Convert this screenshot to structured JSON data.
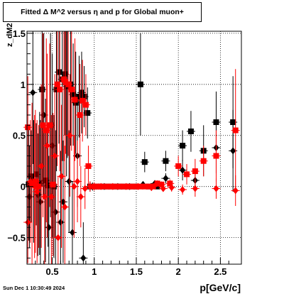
{
  "title": "Fitted Δ M^2 versus η and p for Global muon+",
  "footer_date": "Sun Dec  1 10:30:49 2024",
  "colors": {
    "black_series": "#000000",
    "red_series": "#ff0000",
    "grid": "#000000"
  },
  "chart_data": {
    "type": "scatter",
    "title": "Fitted Δ M^2 versus η and p for Global muon+",
    "xlabel": "p[GeV/c]",
    "ylabel": "z_dM2",
    "xlim": [
      0.2,
      2.75
    ],
    "ylim": [
      -0.76,
      1.52
    ],
    "xticks": [
      0.5,
      1,
      1.5,
      2,
      2.5
    ],
    "xtick_labels": [
      "0.5",
      "1",
      "1.5",
      "2",
      "2.5"
    ],
    "yticks": [
      -0.5,
      0,
      0.5,
      1,
      1.5
    ],
    "ytick_labels": [
      "−0.5",
      "0",
      "0.5",
      "1",
      "1.5"
    ],
    "grid": true,
    "series": [
      {
        "marker": "square",
        "color": "#000000",
        "points": [
          {
            "x": 0.22,
            "y": 0.02,
            "err": 0.55
          },
          {
            "x": 0.25,
            "y": 0.1,
            "err": 0.45
          },
          {
            "x": 0.28,
            "y": 0.05,
            "err": 0.6
          },
          {
            "x": 0.31,
            "y": 0.12,
            "err": 0.5
          },
          {
            "x": 0.35,
            "y": 0.03,
            "err": 0.7
          },
          {
            "x": 0.38,
            "y": 0.95,
            "err": 0.9
          },
          {
            "x": 0.42,
            "y": 0.06,
            "err": 0.8
          },
          {
            "x": 0.45,
            "y": 0.01,
            "err": 0.6
          },
          {
            "x": 0.48,
            "y": 0.6,
            "err": 0.9
          },
          {
            "x": 0.52,
            "y": 0.0,
            "err": 0.7
          },
          {
            "x": 0.55,
            "y": 0.95,
            "err": 0.8
          },
          {
            "x": 0.58,
            "y": 1.12,
            "err": 0.7
          },
          {
            "x": 0.62,
            "y": 1.05,
            "err": 0.8
          },
          {
            "x": 0.65,
            "y": 1.1,
            "err": 0.6
          },
          {
            "x": 0.68,
            "y": 0.98,
            "err": 0.7
          },
          {
            "x": 0.72,
            "y": 1.0,
            "err": 0.6
          },
          {
            "x": 0.75,
            "y": 0.9,
            "err": 0.5
          },
          {
            "x": 0.78,
            "y": 0.82,
            "err": 0.5
          },
          {
            "x": 0.82,
            "y": 0.88,
            "err": 0.4
          },
          {
            "x": 0.85,
            "y": 0.92,
            "err": 0.4
          },
          {
            "x": 0.88,
            "y": 0.88,
            "err": 0.3
          },
          {
            "x": 0.92,
            "y": 0.72,
            "err": 0.25
          },
          {
            "x": 0.95,
            "y": 0.0,
            "err": 0.05
          },
          {
            "x": 1.0,
            "y": 0.0,
            "err": 0.03
          },
          {
            "x": 1.05,
            "y": 0.0,
            "err": 0.02
          },
          {
            "x": 1.1,
            "y": 0.0,
            "err": 0.02
          },
          {
            "x": 1.15,
            "y": 0.0,
            "err": 0.02
          },
          {
            "x": 1.2,
            "y": 0.0,
            "err": 0.02
          },
          {
            "x": 1.25,
            "y": 0.0,
            "err": 0.02
          },
          {
            "x": 1.3,
            "y": 0.0,
            "err": 0.02
          },
          {
            "x": 1.35,
            "y": 0.0,
            "err": 0.02
          },
          {
            "x": 1.4,
            "y": 0.0,
            "err": 0.02
          },
          {
            "x": 1.45,
            "y": 0.0,
            "err": 0.02
          },
          {
            "x": 1.5,
            "y": 0.0,
            "err": 0.02
          },
          {
            "x": 1.55,
            "y": 1.0,
            "err": 0.5
          },
          {
            "x": 1.6,
            "y": 0.24,
            "err": 0.1
          },
          {
            "x": 1.65,
            "y": 0.0,
            "err": 0.02
          },
          {
            "x": 1.75,
            "y": 0.0,
            "err": 0.02
          },
          {
            "x": 1.85,
            "y": 0.25,
            "err": 0.1
          },
          {
            "x": 2.05,
            "y": 0.4,
            "err": 0.15
          },
          {
            "x": 2.15,
            "y": 0.54,
            "err": 0.2
          },
          {
            "x": 2.3,
            "y": 0.35,
            "err": 0.25
          },
          {
            "x": 2.45,
            "y": 0.63,
            "err": 0.3
          },
          {
            "x": 2.65,
            "y": 0.63,
            "err": 0.45
          }
        ]
      },
      {
        "marker": "diamond",
        "color": "#000000",
        "points": [
          {
            "x": 0.23,
            "y": -0.1,
            "err": 0.5
          },
          {
            "x": 0.27,
            "y": 0.92,
            "err": 0.7
          },
          {
            "x": 0.33,
            "y": -0.08,
            "err": 0.6
          },
          {
            "x": 0.36,
            "y": -0.15,
            "err": 0.8
          },
          {
            "x": 0.4,
            "y": 0.7,
            "err": 0.8
          },
          {
            "x": 0.46,
            "y": -0.4,
            "err": 0.7
          },
          {
            "x": 0.5,
            "y": 0.4,
            "err": 0.9
          },
          {
            "x": 0.54,
            "y": -0.25,
            "err": 0.8
          },
          {
            "x": 0.6,
            "y": -0.35,
            "err": 0.7
          },
          {
            "x": 0.63,
            "y": -0.15,
            "err": 0.6
          },
          {
            "x": 0.67,
            "y": 1.0,
            "err": 0.9
          },
          {
            "x": 0.7,
            "y": 0.05,
            "err": 0.5
          },
          {
            "x": 0.74,
            "y": -0.45,
            "err": 0.5
          },
          {
            "x": 0.8,
            "y": 0.3,
            "err": 0.5
          },
          {
            "x": 0.87,
            "y": -0.7,
            "err": 0.35
          },
          {
            "x": 0.98,
            "y": 0.0,
            "err": 0.04
          },
          {
            "x": 1.12,
            "y": 0.0,
            "err": 0.03
          },
          {
            "x": 1.28,
            "y": 0.0,
            "err": 0.02
          },
          {
            "x": 1.42,
            "y": 0.0,
            "err": 0.02
          },
          {
            "x": 1.58,
            "y": 0.02,
            "err": 0.02
          },
          {
            "x": 1.72,
            "y": 0.03,
            "err": 0.03
          },
          {
            "x": 1.85,
            "y": 0.08,
            "err": 0.05
          },
          {
            "x": 2.05,
            "y": 0.16,
            "err": 0.1
          },
          {
            "x": 2.2,
            "y": 0.06,
            "err": 0.1
          },
          {
            "x": 2.45,
            "y": 0.38,
            "err": 0.25
          },
          {
            "x": 2.65,
            "y": 0.35,
            "err": 0.4
          }
        ]
      },
      {
        "marker": "square",
        "color": "#ff0000",
        "points": [
          {
            "x": 0.21,
            "y": 0.58,
            "err": 0.5
          },
          {
            "x": 0.26,
            "y": 0.02,
            "err": 0.8
          },
          {
            "x": 0.3,
            "y": 0.05,
            "err": 0.7
          },
          {
            "x": 0.34,
            "y": 0.0,
            "err": 0.6
          },
          {
            "x": 0.39,
            "y": 0.6,
            "err": 0.9
          },
          {
            "x": 0.43,
            "y": 0.55,
            "err": 0.9
          },
          {
            "x": 0.47,
            "y": 0.6,
            "err": 0.8
          },
          {
            "x": 0.51,
            "y": 0.02,
            "err": 0.7
          },
          {
            "x": 0.56,
            "y": 1.0,
            "err": 0.8
          },
          {
            "x": 0.59,
            "y": 0.95,
            "err": 0.8
          },
          {
            "x": 0.64,
            "y": 1.05,
            "err": 0.8
          },
          {
            "x": 0.66,
            "y": 1.02,
            "err": 0.7
          },
          {
            "x": 0.69,
            "y": 1.0,
            "err": 0.7
          },
          {
            "x": 0.73,
            "y": 0.95,
            "err": 0.6
          },
          {
            "x": 0.77,
            "y": 0.85,
            "err": 0.6
          },
          {
            "x": 0.83,
            "y": 0.7,
            "err": 0.5
          },
          {
            "x": 0.86,
            "y": 0.84,
            "err": 0.4
          },
          {
            "x": 0.9,
            "y": 0.8,
            "err": 0.3
          },
          {
            "x": 0.93,
            "y": 0.2,
            "err": 0.2
          },
          {
            "x": 1.0,
            "y": 0.0,
            "err": 0.04
          },
          {
            "x": 1.05,
            "y": 0.0,
            "err": 0.03
          },
          {
            "x": 1.1,
            "y": 0.0,
            "err": 0.02
          },
          {
            "x": 1.15,
            "y": 0.0,
            "err": 0.02
          },
          {
            "x": 1.2,
            "y": 0.0,
            "err": 0.02
          },
          {
            "x": 1.25,
            "y": 0.0,
            "err": 0.02
          },
          {
            "x": 1.3,
            "y": 0.0,
            "err": 0.02
          },
          {
            "x": 1.35,
            "y": 0.0,
            "err": 0.02
          },
          {
            "x": 1.4,
            "y": 0.0,
            "err": 0.02
          },
          {
            "x": 1.45,
            "y": 0.0,
            "err": 0.02
          },
          {
            "x": 1.5,
            "y": 0.0,
            "err": 0.02
          },
          {
            "x": 1.55,
            "y": 0.0,
            "err": 0.02
          },
          {
            "x": 1.6,
            "y": 0.0,
            "err": 0.02
          },
          {
            "x": 1.65,
            "y": 0.0,
            "err": 0.02
          },
          {
            "x": 1.7,
            "y": 0.0,
            "err": 0.02
          },
          {
            "x": 1.75,
            "y": 0.03,
            "err": 0.03
          },
          {
            "x": 1.8,
            "y": 0.02,
            "err": 0.03
          },
          {
            "x": 1.9,
            "y": 0.03,
            "err": 0.04
          },
          {
            "x": 2.0,
            "y": 0.2,
            "err": 0.1
          },
          {
            "x": 2.1,
            "y": 0.12,
            "err": 0.1
          },
          {
            "x": 2.2,
            "y": 0.15,
            "err": 0.12
          },
          {
            "x": 2.3,
            "y": 0.25,
            "err": 0.15
          },
          {
            "x": 2.45,
            "y": 0.3,
            "err": 0.25
          },
          {
            "x": 2.68,
            "y": 0.55,
            "err": 0.6
          }
        ]
      },
      {
        "marker": "diamond",
        "color": "#ff0000",
        "points": [
          {
            "x": 0.21,
            "y": -0.35,
            "err": 0.4
          },
          {
            "x": 0.24,
            "y": 0.05,
            "err": 0.6
          },
          {
            "x": 0.29,
            "y": 0.0,
            "err": 0.7
          },
          {
            "x": 0.32,
            "y": -0.05,
            "err": 0.7
          },
          {
            "x": 0.37,
            "y": 0.2,
            "err": 0.8
          },
          {
            "x": 0.41,
            "y": -0.1,
            "err": 0.7
          },
          {
            "x": 0.44,
            "y": 0.4,
            "err": 0.9
          },
          {
            "x": 0.49,
            "y": -0.1,
            "err": 0.8
          },
          {
            "x": 0.53,
            "y": 0.3,
            "err": 0.8
          },
          {
            "x": 0.57,
            "y": -0.5,
            "err": 0.6
          },
          {
            "x": 0.61,
            "y": 0.1,
            "err": 0.7
          },
          {
            "x": 0.65,
            "y": -0.2,
            "err": 0.6
          },
          {
            "x": 0.71,
            "y": 0.5,
            "err": 0.6
          },
          {
            "x": 0.76,
            "y": 0.0,
            "err": 0.5
          },
          {
            "x": 0.8,
            "y": 0.05,
            "err": 0.4
          },
          {
            "x": 0.84,
            "y": -0.1,
            "err": 0.3
          },
          {
            "x": 0.89,
            "y": -0.02,
            "err": 0.2
          },
          {
            "x": 0.95,
            "y": 0.0,
            "err": 0.05
          },
          {
            "x": 1.08,
            "y": 0.0,
            "err": 0.03
          },
          {
            "x": 1.22,
            "y": 0.0,
            "err": 0.02
          },
          {
            "x": 1.38,
            "y": 0.0,
            "err": 0.02
          },
          {
            "x": 1.52,
            "y": 0.0,
            "err": 0.02
          },
          {
            "x": 1.68,
            "y": -0.01,
            "err": 0.03
          },
          {
            "x": 1.82,
            "y": -0.02,
            "err": 0.03
          },
          {
            "x": 1.92,
            "y": -0.01,
            "err": 0.04
          },
          {
            "x": 2.05,
            "y": -0.03,
            "err": 0.05
          },
          {
            "x": 2.2,
            "y": -0.02,
            "err": 0.08
          },
          {
            "x": 2.45,
            "y": -0.02,
            "err": 0.1
          },
          {
            "x": 2.68,
            "y": -0.04,
            "err": 0.15
          }
        ]
      }
    ]
  }
}
